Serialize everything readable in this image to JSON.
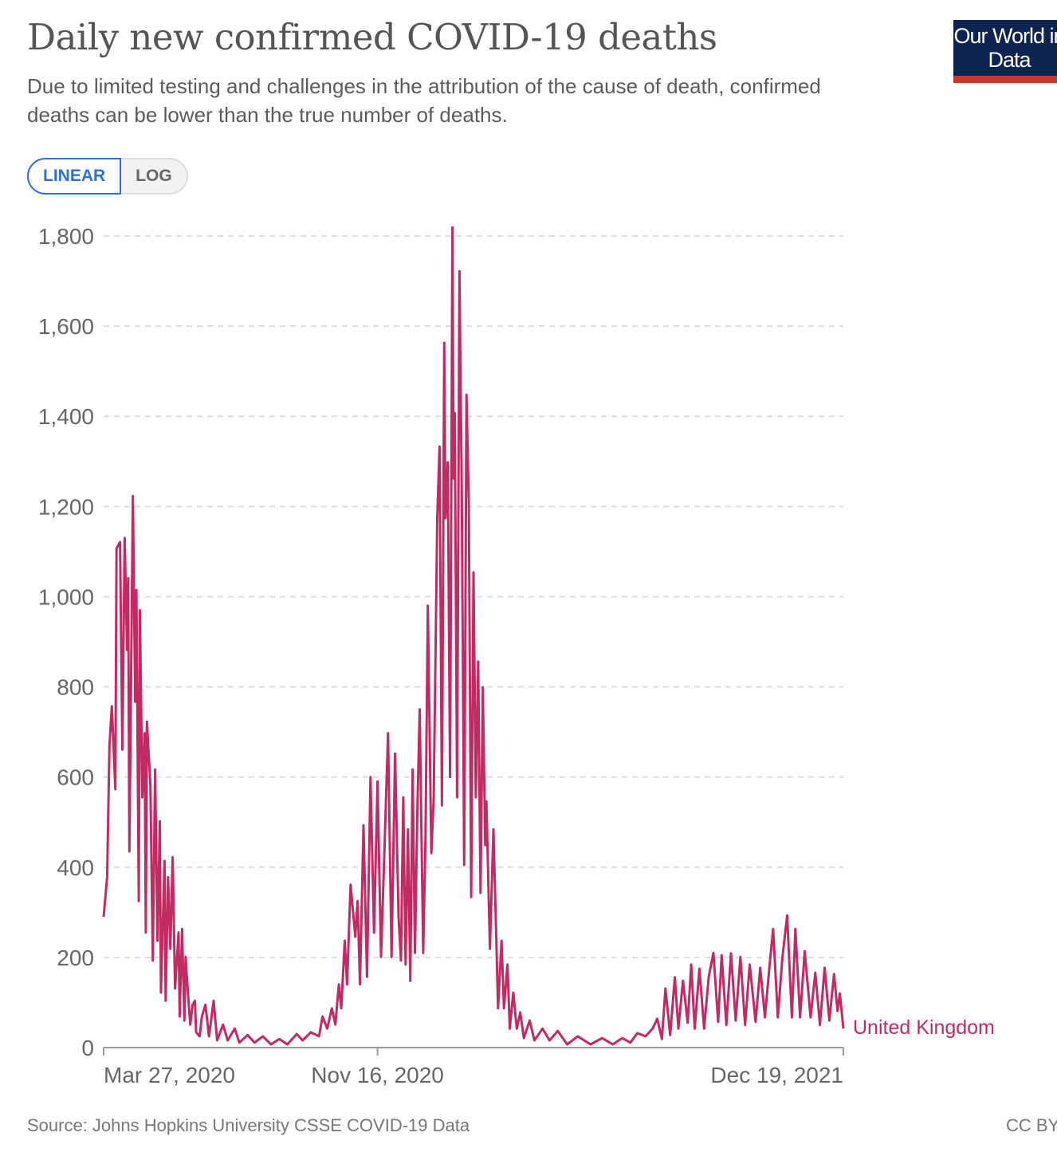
{
  "header": {
    "title": "Daily new confirmed COVID-19 deaths",
    "subtitle": "Due to limited testing and challenges in the attribution of the cause of death, confirmed deaths can be lower than the true number of deaths.",
    "logo_text": "Our World in Data"
  },
  "controls": {
    "linear_label": "LINEAR",
    "log_label": "LOG",
    "selected": "LINEAR"
  },
  "footer": {
    "source": "Source: Johns Hopkins University CSSE COVID-19 Data",
    "license": "CC BY"
  },
  "colors": {
    "series": "#c22a63",
    "grid": "#dddddd",
    "accent": "#2f6fd6"
  },
  "chart_data": {
    "type": "line",
    "title": "Daily new confirmed COVID-19 deaths",
    "xlabel": "",
    "ylabel": "",
    "xlim": [
      "2020-03-27",
      "2021-12-19"
    ],
    "ylim": [
      0,
      1800
    ],
    "grid": "horizontal dashed",
    "scale": "linear",
    "yticks": [
      0,
      200,
      400,
      600,
      800,
      1000,
      1200,
      1400,
      1600,
      1800
    ],
    "ytick_labels": [
      "0",
      "200",
      "400",
      "600",
      "800",
      "1,000",
      "1,200",
      "1,400",
      "1,600",
      "1,800"
    ],
    "xticks": [
      "2020-03-27",
      "2020-11-16",
      "2021-12-19"
    ],
    "xtick_labels": [
      "Mar 27, 2020",
      "Nov 16, 2020",
      "Dec 19, 2021"
    ],
    "series": [
      {
        "name": "United Kingdom",
        "points": [
          [
            "2020-03-27",
            290
          ],
          [
            "2020-03-30",
            378
          ],
          [
            "2020-04-01",
            670
          ],
          [
            "2020-04-03",
            757
          ],
          [
            "2020-04-06",
            573
          ],
          [
            "2020-04-07",
            1107
          ],
          [
            "2020-04-10",
            1121
          ],
          [
            "2020-04-12",
            661
          ],
          [
            "2020-04-14",
            1130
          ],
          [
            "2020-04-16",
            882
          ],
          [
            "2020-04-17",
            1041
          ],
          [
            "2020-04-18",
            435
          ],
          [
            "2020-04-21",
            1223
          ],
          [
            "2020-04-23",
            767
          ],
          [
            "2020-04-24",
            1015
          ],
          [
            "2020-04-26",
            325
          ],
          [
            "2020-04-27",
            970
          ],
          [
            "2020-04-29",
            555
          ],
          [
            "2020-05-01",
            697
          ],
          [
            "2020-05-02",
            255
          ],
          [
            "2020-05-03",
            723
          ],
          [
            "2020-05-06",
            582
          ],
          [
            "2020-05-08",
            193
          ],
          [
            "2020-05-10",
            617
          ],
          [
            "2020-05-12",
            237
          ],
          [
            "2020-05-14",
            502
          ],
          [
            "2020-05-15",
            122
          ],
          [
            "2020-05-18",
            414
          ],
          [
            "2020-05-19",
            104
          ],
          [
            "2020-05-21",
            378
          ],
          [
            "2020-05-23",
            219
          ],
          [
            "2020-05-25",
            422
          ],
          [
            "2020-05-27",
            131
          ],
          [
            "2020-05-30",
            255
          ],
          [
            "2020-05-31",
            69
          ],
          [
            "2020-06-02",
            263
          ],
          [
            "2020-06-04",
            60
          ],
          [
            "2020-06-05",
            201
          ],
          [
            "2020-06-07",
            122
          ],
          [
            "2020-06-09",
            51
          ],
          [
            "2020-06-11",
            95
          ],
          [
            "2020-06-13",
            104
          ],
          [
            "2020-06-14",
            34
          ],
          [
            "2020-06-17",
            25
          ],
          [
            "2020-06-19",
            69
          ],
          [
            "2020-06-22",
            95
          ],
          [
            "2020-06-25",
            25
          ],
          [
            "2020-06-29",
            104
          ],
          [
            "2020-07-02",
            16
          ],
          [
            "2020-07-07",
            51
          ],
          [
            "2020-07-11",
            16
          ],
          [
            "2020-07-17",
            42
          ],
          [
            "2020-07-21",
            11
          ],
          [
            "2020-07-28",
            28
          ],
          [
            "2020-08-03",
            11
          ],
          [
            "2020-08-10",
            25
          ],
          [
            "2020-08-17",
            7
          ],
          [
            "2020-08-24",
            19
          ],
          [
            "2020-08-31",
            7
          ],
          [
            "2020-09-08",
            30
          ],
          [
            "2020-09-13",
            16
          ],
          [
            "2020-09-20",
            34
          ],
          [
            "2020-09-27",
            25
          ],
          [
            "2020-09-30",
            69
          ],
          [
            "2020-10-04",
            42
          ],
          [
            "2020-10-08",
            87
          ],
          [
            "2020-10-11",
            51
          ],
          [
            "2020-10-14",
            140
          ],
          [
            "2020-10-16",
            87
          ],
          [
            "2020-10-19",
            237
          ],
          [
            "2020-10-21",
            140
          ],
          [
            "2020-10-24",
            361
          ],
          [
            "2020-10-28",
            246
          ],
          [
            "2020-10-30",
            325
          ],
          [
            "2020-11-01",
            140
          ],
          [
            "2020-11-04",
            493
          ],
          [
            "2020-11-07",
            157
          ],
          [
            "2020-11-10",
            600
          ],
          [
            "2020-11-13",
            255
          ],
          [
            "2020-11-16",
            590
          ],
          [
            "2020-11-19",
            201
          ],
          [
            "2020-11-21",
            361
          ],
          [
            "2020-11-25",
            697
          ],
          [
            "2020-11-28",
            201
          ],
          [
            "2020-12-01",
            652
          ],
          [
            "2020-12-04",
            290
          ],
          [
            "2020-12-06",
            193
          ],
          [
            "2020-12-08",
            555
          ],
          [
            "2020-12-10",
            184
          ],
          [
            "2020-12-12",
            484
          ],
          [
            "2020-12-14",
            148
          ],
          [
            "2020-12-16",
            617
          ],
          [
            "2020-12-18",
            210
          ],
          [
            "2020-12-20",
            520
          ],
          [
            "2020-12-22",
            750
          ],
          [
            "2020-12-25",
            210
          ],
          [
            "2020-12-27",
            467
          ],
          [
            "2020-12-29",
            980
          ],
          [
            "2021-01-01",
            431
          ],
          [
            "2021-01-03",
            555
          ],
          [
            "2021-01-06",
            1174
          ],
          [
            "2021-01-08",
            1333
          ],
          [
            "2021-01-10",
            537
          ],
          [
            "2021-01-12",
            1563
          ],
          [
            "2021-01-13",
            1174
          ],
          [
            "2021-01-15",
            1298
          ],
          [
            "2021-01-17",
            600
          ],
          [
            "2021-01-19",
            1819
          ],
          [
            "2021-01-20",
            1262
          ],
          [
            "2021-01-21",
            1407
          ],
          [
            "2021-01-23",
            555
          ],
          [
            "2021-01-25",
            1722
          ],
          [
            "2021-01-27",
            1227
          ],
          [
            "2021-01-29",
            405
          ],
          [
            "2021-01-31",
            1448
          ],
          [
            "2021-02-02",
            1209
          ],
          [
            "2021-02-04",
            334
          ],
          [
            "2021-02-06",
            1054
          ],
          [
            "2021-02-08",
            555
          ],
          [
            "2021-02-10",
            856
          ],
          [
            "2021-02-12",
            343
          ],
          [
            "2021-02-14",
            799
          ],
          [
            "2021-02-16",
            449
          ],
          [
            "2021-02-17",
            546
          ],
          [
            "2021-02-20",
            219
          ],
          [
            "2021-02-23",
            484
          ],
          [
            "2021-02-25",
            290
          ],
          [
            "2021-02-27",
            87
          ],
          [
            "2021-03-02",
            237
          ],
          [
            "2021-03-04",
            87
          ],
          [
            "2021-03-07",
            184
          ],
          [
            "2021-03-09",
            42
          ],
          [
            "2021-03-12",
            122
          ],
          [
            "2021-03-15",
            42
          ],
          [
            "2021-03-18",
            78
          ],
          [
            "2021-03-21",
            21
          ],
          [
            "2021-03-26",
            60
          ],
          [
            "2021-03-30",
            16
          ],
          [
            "2021-04-06",
            42
          ],
          [
            "2021-04-12",
            16
          ],
          [
            "2021-04-19",
            37
          ],
          [
            "2021-04-27",
            7
          ],
          [
            "2021-05-06",
            25
          ],
          [
            "2021-05-17",
            7
          ],
          [
            "2021-05-27",
            21
          ],
          [
            "2021-06-05",
            7
          ],
          [
            "2021-06-13",
            21
          ],
          [
            "2021-06-20",
            11
          ],
          [
            "2021-06-26",
            32
          ],
          [
            "2021-07-03",
            25
          ],
          [
            "2021-07-09",
            42
          ],
          [
            "2021-07-13",
            64
          ],
          [
            "2021-07-17",
            19
          ],
          [
            "2021-07-20",
            131
          ],
          [
            "2021-07-24",
            28
          ],
          [
            "2021-07-28",
            156
          ],
          [
            "2021-07-31",
            42
          ],
          [
            "2021-08-04",
            148
          ],
          [
            "2021-08-08",
            55
          ],
          [
            "2021-08-11",
            184
          ],
          [
            "2021-08-14",
            42
          ],
          [
            "2021-08-18",
            175
          ],
          [
            "2021-08-22",
            42
          ],
          [
            "2021-08-26",
            157
          ],
          [
            "2021-08-30",
            210
          ],
          [
            "2021-09-03",
            57
          ],
          [
            "2021-09-06",
            205
          ],
          [
            "2021-09-10",
            50
          ],
          [
            "2021-09-14",
            209
          ],
          [
            "2021-09-18",
            60
          ],
          [
            "2021-09-22",
            201
          ],
          [
            "2021-09-26",
            50
          ],
          [
            "2021-09-30",
            184
          ],
          [
            "2021-10-05",
            57
          ],
          [
            "2021-10-09",
            177
          ],
          [
            "2021-10-13",
            67
          ],
          [
            "2021-10-17",
            184
          ],
          [
            "2021-10-20",
            263
          ],
          [
            "2021-10-24",
            67
          ],
          [
            "2021-10-28",
            201
          ],
          [
            "2021-11-01",
            293
          ],
          [
            "2021-11-05",
            67
          ],
          [
            "2021-11-08",
            263
          ],
          [
            "2021-11-12",
            67
          ],
          [
            "2021-11-16",
            214
          ],
          [
            "2021-11-21",
            67
          ],
          [
            "2021-11-25",
            166
          ],
          [
            "2021-11-29",
            50
          ],
          [
            "2021-12-03",
            177
          ],
          [
            "2021-12-07",
            60
          ],
          [
            "2021-12-11",
            163
          ],
          [
            "2021-12-14",
            81
          ],
          [
            "2021-12-16",
            120
          ],
          [
            "2021-12-19",
            42
          ]
        ]
      }
    ]
  }
}
